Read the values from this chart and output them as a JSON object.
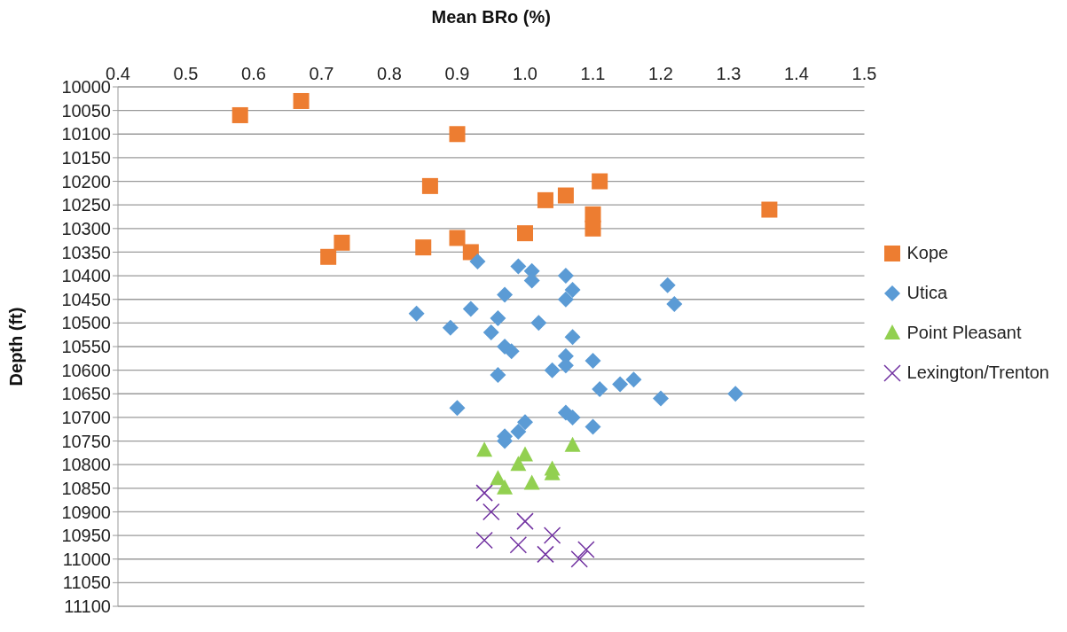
{
  "chart_data": {
    "type": "scatter",
    "xlabel": "Mean BRo (%)",
    "ylabel": "Depth (ft)",
    "xlim": [
      0.4,
      1.5
    ],
    "xticks": [
      0.4,
      0.5,
      0.6,
      0.7,
      0.8,
      0.9,
      {
        "value": 1,
        "label": "1.0"
      },
      1.1,
      1.2,
      1.3,
      1.4,
      1.5
    ],
    "ylim": [
      11100,
      10000
    ],
    "yticks": [
      10000,
      10050,
      10100,
      10150,
      10200,
      10250,
      10300,
      10350,
      10400,
      10450,
      10500,
      10550,
      10600,
      10650,
      10700,
      10750,
      10800,
      10850,
      10900,
      10950,
      11000,
      11050,
      11100
    ],
    "grid": "y",
    "legend": "right",
    "series": [
      {
        "name": "Kope",
        "color": "#ed7d31",
        "marker": "square",
        "x": [
          0.58,
          0.67,
          0.9,
          0.86,
          1.11,
          1.06,
          1.03,
          1.1,
          1.36,
          1.1,
          1.0,
          0.9,
          0.73,
          0.92,
          0.85,
          0.71
        ],
        "values": [
          10060,
          10030,
          10100,
          10210,
          10200,
          10230,
          10240,
          10270,
          10260,
          10300,
          10310,
          10320,
          10330,
          10350,
          10340,
          10360
        ]
      },
      {
        "name": "Utica",
        "color": "#5b9bd5",
        "marker": "diamond",
        "x": [
          0.93,
          0.99,
          1.01,
          1.06,
          1.01,
          1.21,
          1.07,
          0.97,
          1.06,
          1.22,
          0.92,
          0.84,
          0.96,
          1.02,
          0.89,
          0.95,
          1.07,
          0.97,
          0.98,
          1.06,
          1.1,
          1.06,
          1.04,
          0.96,
          1.16,
          1.14,
          1.11,
          1.31,
          1.2,
          0.9,
          1.06,
          1.07,
          1.0,
          1.1,
          0.99,
          0.97,
          0.97
        ],
        "values": [
          10370,
          10380,
          10390,
          10400,
          10410,
          10420,
          10430,
          10440,
          10450,
          10460,
          10470,
          10480,
          10490,
          10500,
          10510,
          10520,
          10530,
          10550,
          10560,
          10570,
          10580,
          10590,
          10600,
          10610,
          10620,
          10630,
          10640,
          10650,
          10660,
          10680,
          10690,
          10700,
          10710,
          10720,
          10730,
          10740,
          10750
        ]
      },
      {
        "name": "Point Pleasant",
        "color": "#92d050",
        "marker": "triangle",
        "x": [
          0.94,
          1.07,
          1.0,
          0.99,
          1.04,
          1.04,
          0.96,
          1.01,
          0.97
        ],
        "values": [
          10770,
          10760,
          10780,
          10800,
          10810,
          10820,
          10830,
          10840,
          10850
        ]
      },
      {
        "name": "Lexington/Trenton",
        "color": "#7030a0",
        "marker": "cross",
        "x": [
          0.94,
          0.95,
          1.0,
          1.04,
          0.94,
          0.99,
          1.09,
          1.03,
          1.08
        ],
        "values": [
          10860,
          10900,
          10920,
          10950,
          10960,
          10970,
          10980,
          10990,
          11000
        ]
      }
    ]
  }
}
